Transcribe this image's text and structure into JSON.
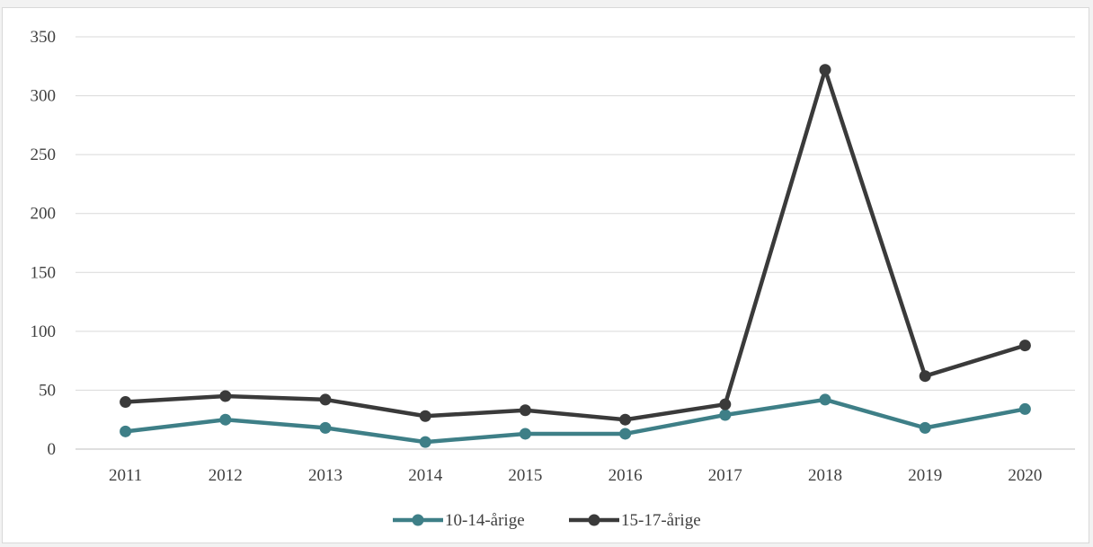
{
  "chart_data": {
    "type": "line",
    "categories": [
      "2011",
      "2012",
      "2013",
      "2014",
      "2015",
      "2016",
      "2017",
      "2018",
      "2019",
      "2020"
    ],
    "series": [
      {
        "name": "10-14-årige",
        "color": "#3e7f87",
        "values": [
          15,
          25,
          18,
          6,
          13,
          13,
          29,
          42,
          18,
          34
        ]
      },
      {
        "name": "15-17-årige",
        "color": "#3a3a3a",
        "values": [
          40,
          45,
          42,
          28,
          33,
          25,
          38,
          322,
          62,
          88
        ]
      }
    ],
    "yticks": [
      "0",
      "50",
      "100",
      "150",
      "200",
      "250",
      "300",
      "350"
    ],
    "ylim": [
      0,
      350
    ],
    "grid": true,
    "legend_position": "bottom"
  }
}
